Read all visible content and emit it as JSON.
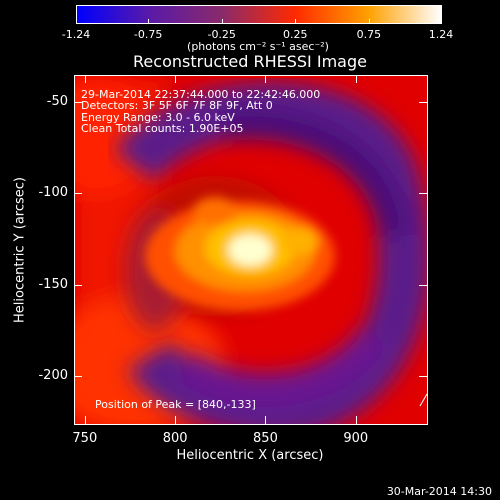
{
  "colorbar": {
    "tick_labels": [
      "-1.24",
      "-0.75",
      "-0.25",
      "0.25",
      "0.75",
      "1.24"
    ],
    "tick_values": [
      -1.24,
      -0.75,
      -0.25,
      0.25,
      0.75,
      1.24
    ],
    "range": [
      -1.24,
      1.24
    ],
    "units": "(photons cm⁻² s⁻¹ asec⁻²)",
    "colors": [
      "#0000ff",
      "#5a1aa8",
      "#8a2a6a",
      "#ff2a00",
      "#ffa000",
      "#ffffff"
    ]
  },
  "title": "Reconstructed RHESSI Image",
  "info": {
    "time_range": "29-Mar-2014 22:37:44.000 to 22:42:46.000",
    "detectors": "Detectors: 3F 5F 6F 7F 8F 9F, Att 0",
    "energy": "Energy Range: 3.0 - 6.0 keV",
    "method": "Clean     Total counts: 1.90E+05",
    "peak": "Position of Peak = [840,-133]"
  },
  "axes": {
    "xlabel": "Heliocentric X (arcsec)",
    "ylabel": "Heliocentric Y (arcsec)",
    "xticks": [
      "750",
      "800",
      "850",
      "900"
    ],
    "xtick_values": [
      750,
      800,
      850,
      900
    ],
    "yticks": [
      "-50",
      "-100",
      "-150",
      "-200"
    ],
    "ytick_values": [
      -50,
      -100,
      -150,
      -200
    ],
    "xlim": [
      744,
      940
    ],
    "ylim": [
      -227,
      -35
    ]
  },
  "timestamp": "30-Mar-2014 14:30"
}
